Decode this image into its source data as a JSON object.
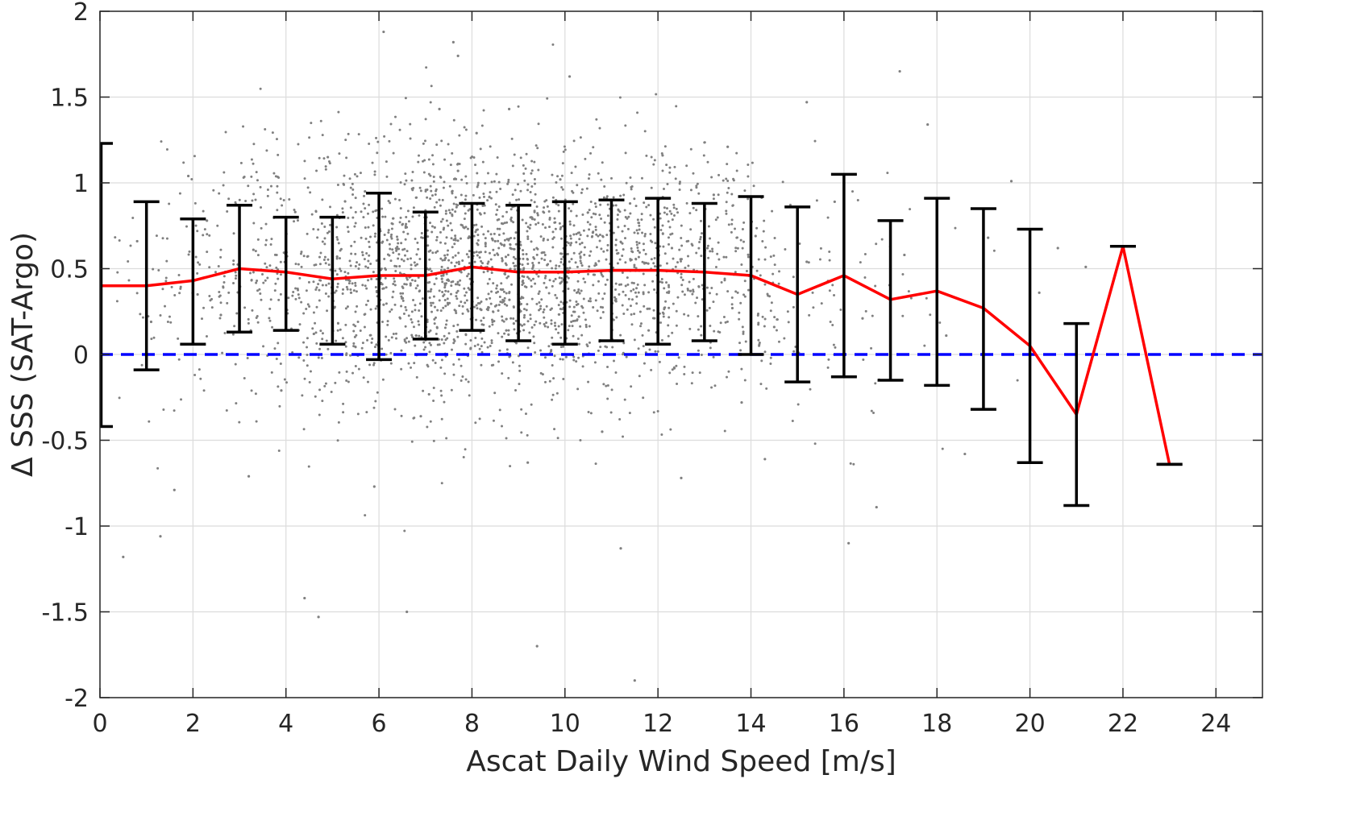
{
  "chart_data": {
    "type": "scatter",
    "xlabel": "Ascat Daily Wind Speed [m/s]",
    "ylabel": "Δ SSS (SAT-Argo)",
    "xlim": [
      0,
      25
    ],
    "ylim": [
      -2,
      2
    ],
    "xticks": [
      0,
      2,
      4,
      6,
      8,
      10,
      12,
      14,
      16,
      18,
      20,
      22,
      24
    ],
    "yticks": [
      -2,
      -1.5,
      -1,
      -0.5,
      0,
      0.5,
      1,
      1.5,
      2
    ],
    "grid": true,
    "colors": {
      "scatter": "#808080",
      "mean_line": "#ff0000",
      "zero_line": "#0000ff",
      "error_bars": "#000000"
    },
    "series": [
      {
        "kind": "mean-line",
        "x": [
          0,
          1,
          2,
          3,
          4,
          5,
          6,
          7,
          8,
          9,
          10,
          11,
          12,
          13,
          14,
          15,
          16,
          17,
          18,
          19,
          20,
          21,
          22,
          23
        ],
        "y": [
          0.4,
          0.4,
          0.43,
          0.5,
          0.48,
          0.44,
          0.46,
          0.46,
          0.51,
          0.48,
          0.48,
          0.49,
          0.49,
          0.48,
          0.46,
          0.35,
          0.46,
          0.32,
          0.37,
          0.27,
          0.05,
          -0.35,
          0.63,
          -0.64
        ]
      },
      {
        "kind": "error-bars",
        "x": [
          0,
          1,
          2,
          3,
          4,
          5,
          6,
          7,
          8,
          9,
          10,
          11,
          12,
          13,
          14,
          15,
          16,
          17,
          18,
          19,
          20,
          21,
          22,
          23
        ],
        "lower": [
          -0.42,
          -0.09,
          0.06,
          0.13,
          0.14,
          0.06,
          -0.03,
          0.09,
          0.14,
          0.08,
          0.06,
          0.08,
          0.06,
          0.08,
          0.0,
          -0.16,
          -0.13,
          -0.15,
          -0.18,
          -0.32,
          -0.63,
          -0.88,
          0.63,
          -0.64
        ],
        "upper": [
          1.23,
          0.89,
          0.79,
          0.87,
          0.8,
          0.8,
          0.94,
          0.83,
          0.88,
          0.87,
          0.89,
          0.9,
          0.91,
          0.88,
          0.92,
          0.86,
          1.05,
          0.78,
          0.91,
          0.85,
          0.73,
          0.18,
          0.63,
          -0.64
        ]
      },
      {
        "kind": "reference-line",
        "y": 0
      },
      {
        "kind": "scatter-cloud",
        "points": [
          [
            1.9,
            1.04
          ],
          [
            2.3,
            0.78
          ],
          [
            2.6,
            0.23
          ],
          [
            3.3,
            0.61
          ],
          [
            3.7,
            0.49
          ],
          [
            4.2,
            0.83
          ],
          [
            4.6,
            0.12
          ],
          [
            5.1,
            0.57
          ],
          [
            5.4,
            0.36
          ],
          [
            5.7,
            0.95
          ],
          [
            6.1,
            0.29
          ],
          [
            6.4,
            0.67
          ],
          [
            6.8,
            0.11
          ],
          [
            7.2,
            0.74
          ],
          [
            7.5,
            0.43
          ],
          [
            7.7,
            1.07
          ],
          [
            8.2,
            0.26
          ],
          [
            8.5,
            0.66
          ],
          [
            8.9,
            0.18
          ],
          [
            9.3,
            0.79
          ],
          [
            9.6,
            0.39
          ],
          [
            9.9,
            1.02
          ],
          [
            10.3,
            0.22
          ],
          [
            10.6,
            0.71
          ],
          [
            11.1,
            0.31
          ],
          [
            11.4,
            0.88
          ],
          [
            11.8,
            0.14
          ],
          [
            12.3,
            0.62
          ],
          [
            12.7,
            0.37
          ],
          [
            13.2,
            0.93
          ],
          [
            13.6,
            0.27
          ],
          [
            14.1,
            0.69
          ],
          [
            14.5,
            0.16
          ],
          [
            15.2,
            0.54
          ],
          [
            15.8,
            0.89
          ],
          [
            16.4,
            0.21
          ],
          [
            17.3,
            0.58
          ],
          [
            18.2,
            0.11
          ],
          [
            19.1,
            0.68
          ],
          [
            20.2,
            0.36
          ],
          [
            0.5,
            -1.18
          ],
          [
            1.3,
            -1.06
          ],
          [
            1.6,
            -0.79
          ],
          [
            4.7,
            -1.53
          ],
          [
            4.4,
            -1.42
          ],
          [
            5.9,
            -0.77
          ],
          [
            6.6,
            -1.5
          ],
          [
            9.4,
            -1.7
          ],
          [
            11.5,
            -1.9
          ],
          [
            7.6,
            1.82
          ],
          [
            7.7,
            1.74
          ],
          [
            6.1,
            1.88
          ],
          [
            3.2,
            -0.71
          ],
          [
            10.1,
            1.62
          ],
          [
            8.8,
            1.43
          ],
          [
            7.3,
            1.43
          ],
          [
            11.2,
            -1.13
          ],
          [
            16.1,
            -1.1
          ],
          [
            15.2,
            1.47
          ],
          [
            17.2,
            1.65
          ],
          [
            9.2,
            -0.63
          ],
          [
            12.5,
            -0.72
          ],
          [
            14.3,
            -0.61
          ],
          [
            16.7,
            -0.89
          ],
          [
            18.6,
            -0.58
          ],
          [
            2.1,
            0.35
          ],
          [
            3.9,
            -0.21
          ],
          [
            6.9,
            -0.36
          ],
          [
            10.8,
            -0.45
          ],
          [
            13.8,
            -0.28
          ],
          [
            4.9,
            1.15
          ],
          [
            8.1,
            1.29
          ],
          [
            12.1,
            1.16
          ],
          [
            13.5,
            1.21
          ],
          [
            17.8,
            1.34
          ],
          [
            19.6,
            1.01
          ],
          [
            20.6,
            0.62
          ],
          [
            21.2,
            0.51
          ],
          [
            0.8,
            0.66
          ],
          [
            1.1,
            0.19
          ]
        ]
      }
    ]
  }
}
